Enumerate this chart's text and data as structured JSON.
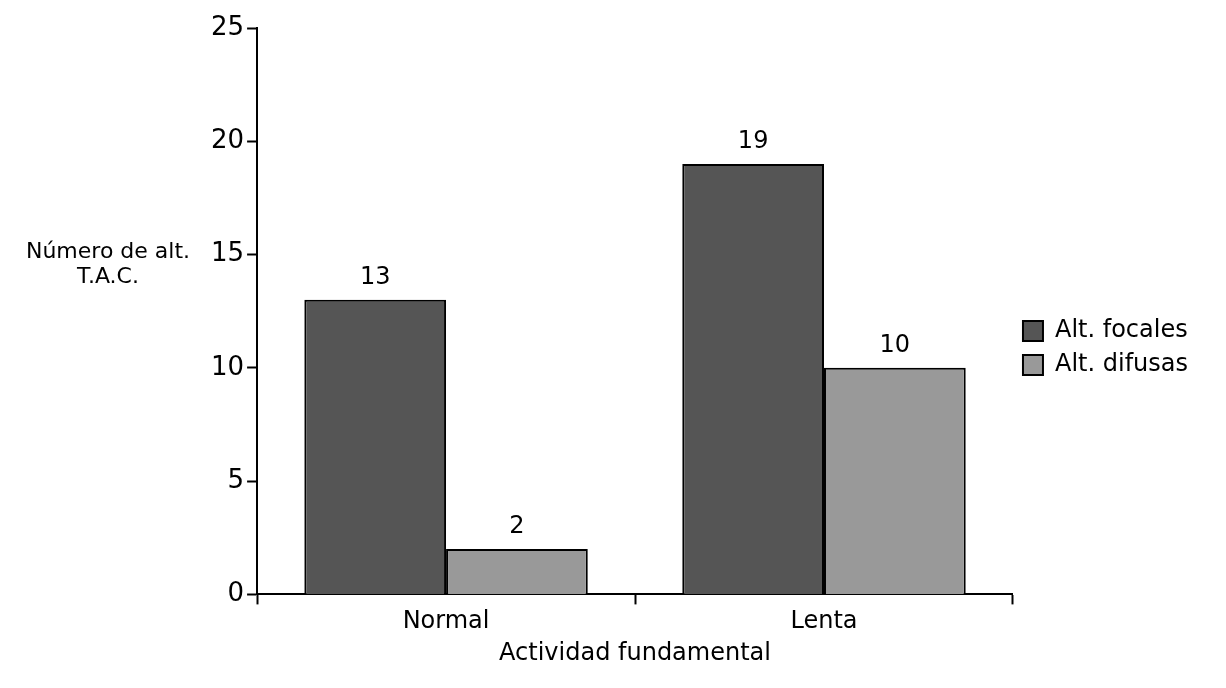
{
  "chart_data": {
    "type": "bar",
    "xlabel": "Actividad fundamental",
    "ylabel": "Número de alt.\nT.A.C.",
    "categories": [
      "Normal",
      "Lenta"
    ],
    "series": [
      {
        "name": "Alt. focales",
        "color": "#555555",
        "values": [
          13,
          19
        ]
      },
      {
        "name": "Alt. difusas",
        "color": "#999999",
        "values": [
          2,
          10
        ]
      }
    ],
    "ylim": [
      0,
      25
    ],
    "yticks": [
      0,
      5,
      10,
      15,
      20,
      25
    ],
    "grid": false,
    "legend": "right",
    "data_labels": true
  }
}
